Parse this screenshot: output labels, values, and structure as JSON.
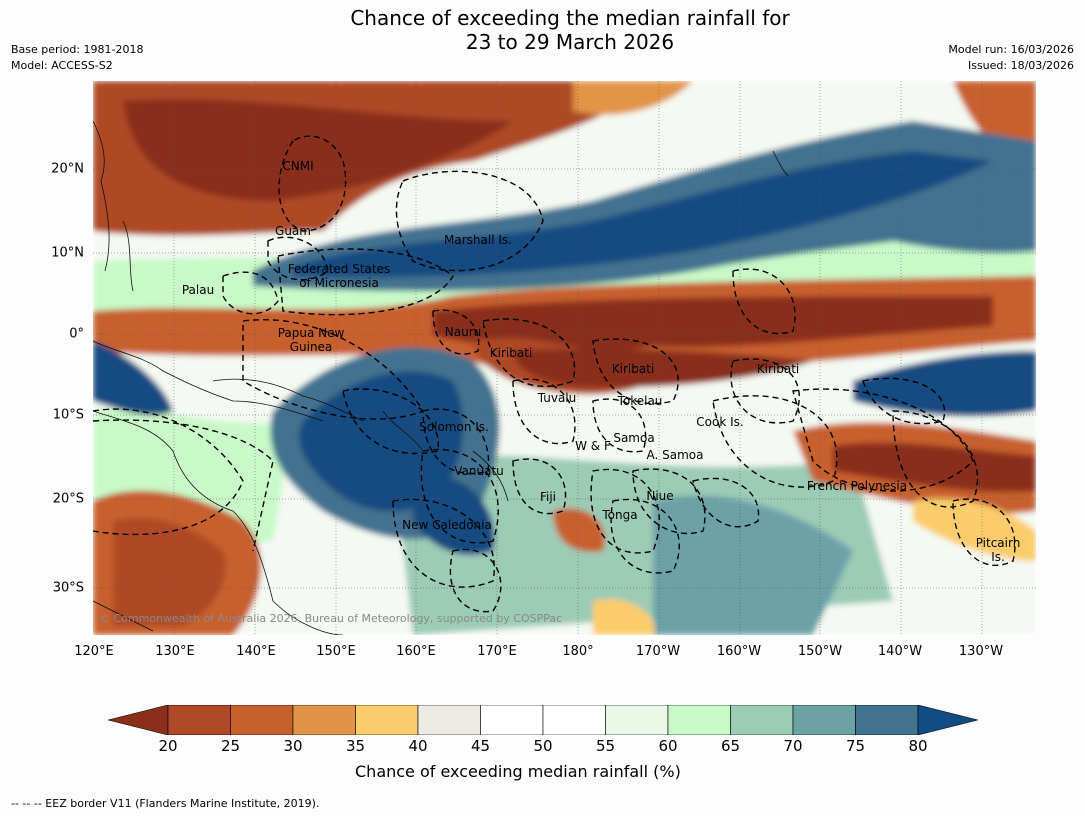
{
  "header": {
    "title_line1": "Chance of exceeding the median rainfall for",
    "title_line2": "23 to 29 March 2026",
    "base_period": "Base period: 1981-2018",
    "model": "Model: ACCESS-S2",
    "model_run": "Model run: 16/03/2026",
    "issued": "Issued: 18/03/2026"
  },
  "map": {
    "copyright": "© Commonwealth of Australia 2026, Bureau of Meteorology, supported by COSPPac",
    "lat_labels": [
      "20°N",
      "10°N",
      "0°",
      "10°S",
      "20°S",
      "30°S"
    ],
    "lon_labels": [
      "120°E",
      "130°E",
      "140°E",
      "150°E",
      "160°E",
      "170°E",
      "180°",
      "170°W",
      "160°W",
      "150°W",
      "140°W",
      "130°W"
    ],
    "regions": [
      "CNMI",
      "Guam",
      "Marshall Is.",
      "Federated States\nof Micronesia",
      "Palau",
      "Papua New\nGuinea",
      "Nauru",
      "Kiribati",
      "Kiribati",
      "Kiribati",
      "Tuvalu",
      "Tokelau",
      "Cook Is.",
      "Solomon Is.",
      "W & F",
      "Samoa",
      "A. Samoa",
      "Vanuatu",
      "Fiji",
      "Niue",
      "Tonga",
      "French Polynesia",
      "New Caledonia",
      "Pitcairn\nIs."
    ]
  },
  "colorbar": {
    "title": "Chance of exceeding median rainfall (%)",
    "ticks": [
      "20",
      "25",
      "30",
      "35",
      "40",
      "45",
      "50",
      "55",
      "60",
      "65",
      "70",
      "75",
      "80"
    ],
    "colors": {
      "under": "#8a2f1c",
      "bins": [
        "#ae4a27",
        "#c8602d",
        "#e29446",
        "#fbcc6b",
        "#eeebe6",
        "#ffffff",
        "#ffffff",
        "#e9f8e8",
        "#c9f9c8",
        "#9ccbb6",
        "#6ca1a8",
        "#43728f"
      ],
      "over": "#134c82"
    }
  },
  "footnote": "--  --  -- EEZ border V11 (Flanders Marine Institute, 2019)."
}
